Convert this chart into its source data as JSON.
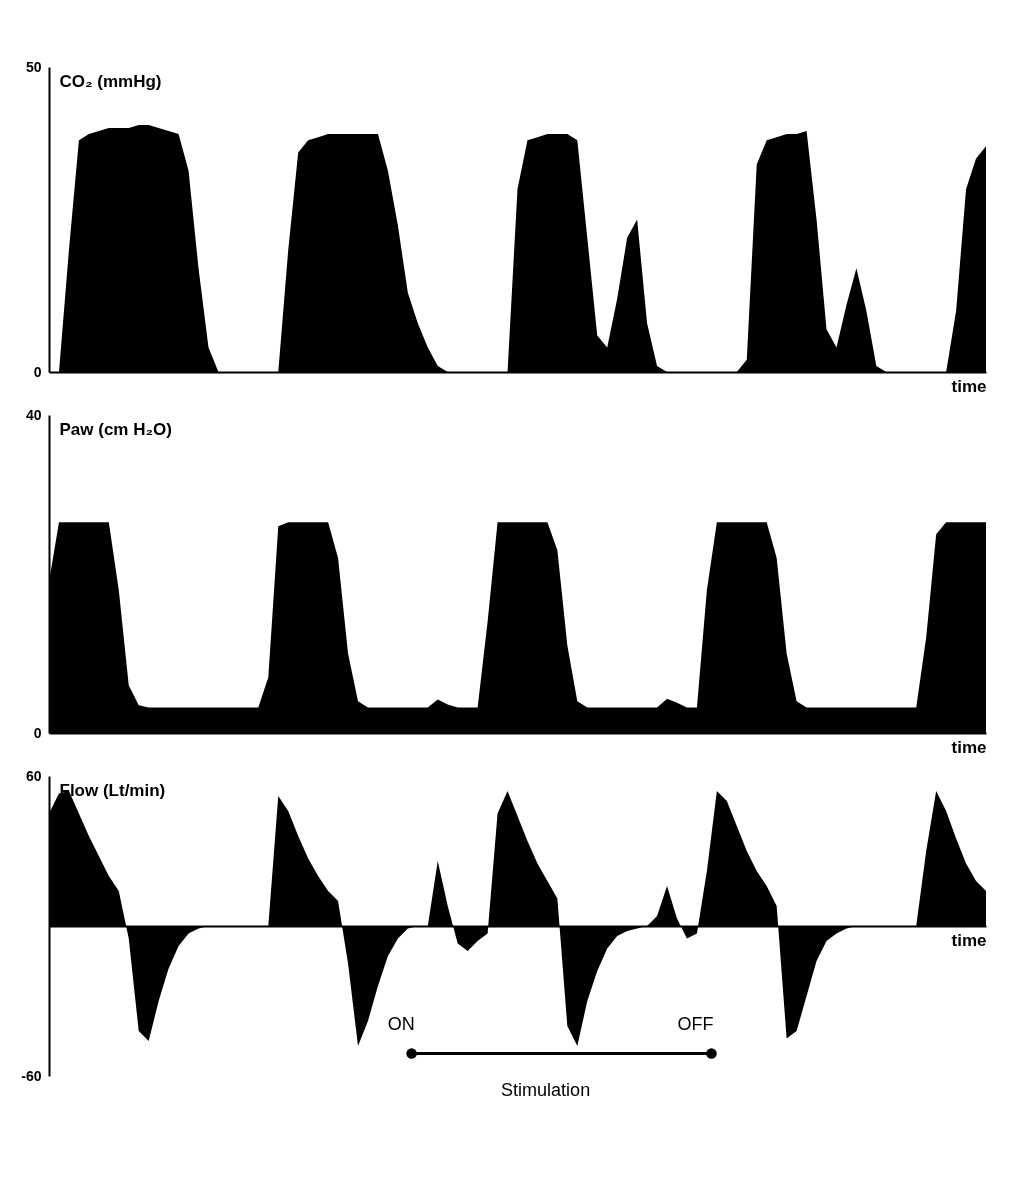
{
  "chart_data": [
    {
      "type": "area",
      "ylabel": "CO₂ (mmHg)",
      "xlabel": "time",
      "ylim": [
        0,
        50
      ],
      "yticks": [
        0,
        50
      ],
      "tick_labels": "y",
      "categories": [
        null,
        null,
        null,
        null,
        null,
        null,
        null,
        null,
        null,
        null,
        null,
        null,
        null,
        null,
        null,
        null,
        null,
        null,
        null,
        null,
        null,
        null,
        null,
        null,
        null,
        null,
        null,
        null,
        null,
        null,
        null,
        null,
        null,
        null,
        null,
        null,
        null,
        null,
        null,
        null,
        null,
        null,
        null,
        null,
        null,
        null,
        null,
        null,
        null,
        null,
        null,
        null,
        null,
        null,
        null,
        null,
        null,
        null,
        null,
        null,
        null,
        null,
        null,
        null,
        null,
        null,
        null,
        null,
        null,
        null,
        null,
        null,
        null,
        null,
        null,
        null,
        null,
        null,
        null,
        null,
        null,
        null,
        null,
        null,
        null,
        null,
        null,
        null,
        null,
        null,
        null,
        null,
        null,
        null,
        null
      ],
      "series": [
        {
          "color": "#000000",
          "values": [
            0,
            0,
            20,
            38,
            39,
            39.5,
            40,
            40,
            40,
            40.5,
            40.5,
            40,
            39.5,
            39,
            33,
            17,
            4,
            0,
            0,
            0,
            0,
            0,
            0,
            0,
            20,
            36,
            38,
            38.5,
            39,
            39,
            39,
            39,
            39,
            39,
            33,
            24,
            13,
            8,
            4,
            1,
            0,
            0,
            0,
            0,
            0,
            0,
            0,
            30,
            38,
            38.5,
            39,
            39,
            39,
            38,
            22,
            6,
            4,
            12,
            22,
            25,
            8,
            1,
            0,
            0,
            0,
            0,
            0,
            0,
            0,
            0,
            2,
            34,
            38,
            38.5,
            39,
            39,
            39.5,
            25,
            7,
            4,
            11,
            17,
            10,
            1,
            0,
            0,
            0,
            0,
            0,
            0,
            0,
            10,
            30,
            35,
            37
          ]
        }
      ]
    },
    {
      "type": "area",
      "ylabel": "Paw (cm H₂O)",
      "xlabel": "time",
      "ylim": [
        0,
        40
      ],
      "yticks": [
        0,
        40
      ],
      "tick_labels": "y",
      "categories": [
        null,
        null,
        null,
        null,
        null,
        null,
        null,
        null,
        null,
        null,
        null,
        null,
        null,
        null,
        null,
        null,
        null,
        null,
        null,
        null,
        null,
        null,
        null,
        null,
        null,
        null,
        null,
        null,
        null,
        null,
        null,
        null,
        null,
        null,
        null,
        null,
        null,
        null,
        null,
        null,
        null,
        null,
        null,
        null,
        null,
        null,
        null,
        null,
        null,
        null,
        null,
        null,
        null,
        null,
        null,
        null,
        null,
        null,
        null,
        null,
        null,
        null,
        null,
        null,
        null,
        null,
        null,
        null,
        null,
        null,
        null,
        null,
        null,
        null,
        null,
        null,
        null,
        null,
        null,
        null,
        null,
        null,
        null,
        null,
        null,
        null,
        null,
        null,
        null,
        null,
        null,
        null,
        null,
        null,
        null
      ],
      "series": [
        {
          "color": "#000000",
          "values": [
            19,
            26.5,
            26.5,
            26.5,
            26.5,
            26.5,
            26.5,
            18,
            6,
            3.5,
            3.2,
            3.2,
            3.2,
            3.2,
            3.2,
            3.2,
            3.2,
            3.2,
            3.2,
            3.2,
            3.2,
            3.2,
            7,
            26,
            26.5,
            26.5,
            26.5,
            26.5,
            26.5,
            22,
            10,
            4,
            3.2,
            3.2,
            3.2,
            3.2,
            3.2,
            3.2,
            3.2,
            4.2,
            3.6,
            3.2,
            3.2,
            3.2,
            14,
            26.5,
            26.5,
            26.5,
            26.5,
            26.5,
            26.5,
            23,
            11,
            4,
            3.2,
            3.2,
            3.2,
            3.2,
            3.2,
            3.2,
            3.2,
            3.2,
            4.3,
            3.8,
            3.2,
            3.2,
            18,
            26.5,
            26.5,
            26.5,
            26.5,
            26.5,
            26.5,
            22,
            10,
            4,
            3.2,
            3.2,
            3.2,
            3.2,
            3.2,
            3.2,
            3.2,
            3.2,
            3.2,
            3.2,
            3.2,
            3.2,
            12,
            25,
            26.5,
            26.5,
            26.5,
            26.5,
            26.5
          ]
        }
      ]
    },
    {
      "type": "area",
      "ylabel": "Flow (Lt/min)",
      "xlabel": "time",
      "ylim": [
        -60,
        60
      ],
      "yticks": [
        -60,
        60
      ],
      "tick_labels": "y",
      "annotations": [
        "ON",
        "OFF",
        "Stimulation"
      ],
      "categories": [
        null,
        null,
        null,
        null,
        null,
        null,
        null,
        null,
        null,
        null,
        null,
        null,
        null,
        null,
        null,
        null,
        null,
        null,
        null,
        null,
        null,
        null,
        null,
        null,
        null,
        null,
        null,
        null,
        null,
        null,
        null,
        null,
        null,
        null,
        null,
        null,
        null,
        null,
        null,
        null,
        null,
        null,
        null,
        null,
        null,
        null,
        null,
        null,
        null,
        null,
        null,
        null,
        null,
        null,
        null,
        null,
        null,
        null,
        null,
        null,
        null,
        null,
        null,
        null,
        null,
        null,
        null,
        null,
        null,
        null,
        null,
        null,
        null,
        null,
        null,
        null,
        null,
        null,
        null,
        null,
        null,
        null,
        null,
        null,
        null,
        null,
        null,
        null,
        null,
        null,
        null,
        null,
        null,
        null,
        null
      ],
      "series": [
        {
          "color": "#000000",
          "values": [
            45,
            53,
            54,
            45,
            36,
            28,
            20,
            14,
            -5,
            -42,
            -46,
            -30,
            -17,
            -8,
            -3,
            -1,
            0,
            0,
            0,
            0,
            0,
            0,
            0,
            52,
            46,
            36,
            27,
            20,
            14,
            10,
            -15,
            -48,
            -38,
            -24,
            -12,
            -5,
            -1,
            0,
            0,
            26,
            8,
            -7,
            -10,
            -6,
            -3,
            45,
            54,
            44,
            34,
            25,
            18,
            11,
            -40,
            -48,
            -30,
            -18,
            -9,
            -4,
            -2,
            -1,
            0,
            4,
            16,
            3,
            -5,
            -3,
            22,
            54,
            50,
            40,
            30,
            22,
            16,
            8,
            -45,
            -42,
            -28,
            -14,
            -6,
            -3,
            -1,
            0,
            0,
            0,
            0,
            0,
            0,
            0,
            30,
            54,
            46,
            35,
            25,
            18,
            14
          ]
        }
      ]
    }
  ]
}
